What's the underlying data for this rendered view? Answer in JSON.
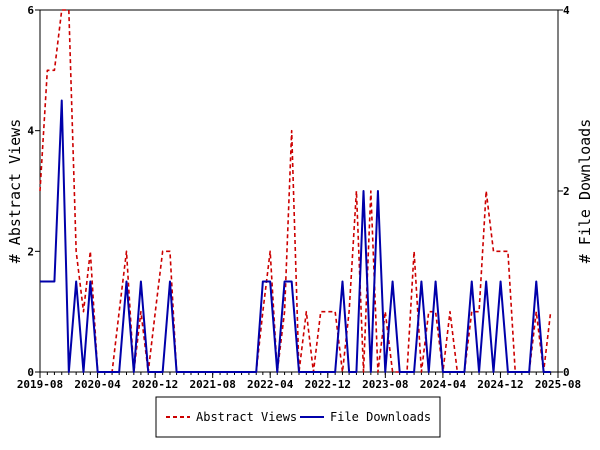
{
  "chart_data": {
    "type": "line",
    "x_tick_labels": [
      "2019-08",
      "2020-04",
      "2020-12",
      "2021-08",
      "2022-04",
      "2022-12",
      "2023-08",
      "2024-04",
      "2024-12",
      "2025-08"
    ],
    "x_range": [
      "2019-08-01",
      "2025-08-01"
    ],
    "y_left": {
      "label": "# Abstract Views",
      "range": [
        0,
        6
      ],
      "ticks": [
        "0",
        "2",
        "4",
        "6"
      ]
    },
    "y_right": {
      "label": "# File Downloads",
      "range": [
        0,
        4
      ],
      "ticks": [
        "0",
        "2",
        "4"
      ]
    },
    "grid": false,
    "legend_position": "bottom-center",
    "series": [
      {
        "name": "Abstract Views",
        "axis": "left",
        "color": "#cc0000",
        "style": "dashed",
        "points": [
          [
            "2019-08-01",
            3
          ],
          [
            "2019-09-01",
            5
          ],
          [
            "2019-10-01",
            5
          ],
          [
            "2019-11-01",
            6
          ],
          [
            "2019-12-01",
            6
          ],
          [
            "2020-01-01",
            2
          ],
          [
            "2020-02-01",
            1
          ],
          [
            "2020-03-01",
            2
          ],
          [
            "2020-04-01",
            0
          ],
          [
            "2020-05-01",
            0
          ],
          [
            "2020-06-01",
            0
          ],
          [
            "2020-07-01",
            1
          ],
          [
            "2020-08-01",
            2
          ],
          [
            "2020-09-01",
            0
          ],
          [
            "2020-10-01",
            1
          ],
          [
            "2020-11-01",
            0
          ],
          [
            "2020-12-01",
            1
          ],
          [
            "2021-01-01",
            2
          ],
          [
            "2021-02-01",
            2
          ],
          [
            "2021-03-01",
            0
          ],
          [
            "2021-04-01",
            0
          ],
          [
            "2021-05-01",
            0
          ],
          [
            "2021-06-01",
            0
          ],
          [
            "2021-07-01",
            0
          ],
          [
            "2021-08-01",
            0
          ],
          [
            "2021-09-01",
            0
          ],
          [
            "2021-10-01",
            0
          ],
          [
            "2021-11-01",
            0
          ],
          [
            "2021-12-01",
            0
          ],
          [
            "2022-01-01",
            0
          ],
          [
            "2022-02-01",
            0
          ],
          [
            "2022-03-01",
            1
          ],
          [
            "2022-04-01",
            2
          ],
          [
            "2022-05-01",
            0
          ],
          [
            "2022-06-01",
            1
          ],
          [
            "2022-07-01",
            4
          ],
          [
            "2022-08-01",
            0
          ],
          [
            "2022-09-01",
            1
          ],
          [
            "2022-10-01",
            0
          ],
          [
            "2022-11-01",
            1
          ],
          [
            "2022-12-01",
            1
          ],
          [
            "2023-01-01",
            1
          ],
          [
            "2023-02-01",
            0
          ],
          [
            "2023-03-01",
            1
          ],
          [
            "2023-04-01",
            3
          ],
          [
            "2023-05-01",
            0
          ],
          [
            "2023-06-01",
            3
          ],
          [
            "2023-07-01",
            0
          ],
          [
            "2023-08-01",
            1
          ],
          [
            "2023-09-01",
            0
          ],
          [
            "2023-10-01",
            0
          ],
          [
            "2023-11-01",
            0
          ],
          [
            "2023-12-01",
            2
          ],
          [
            "2024-01-01",
            0
          ],
          [
            "2024-02-01",
            1
          ],
          [
            "2024-03-01",
            1
          ],
          [
            "2024-04-01",
            0
          ],
          [
            "2024-05-01",
            1
          ],
          [
            "2024-06-01",
            0
          ],
          [
            "2024-07-01",
            0
          ],
          [
            "2024-08-01",
            1
          ],
          [
            "2024-09-01",
            1
          ],
          [
            "2024-10-01",
            3
          ],
          [
            "2024-11-01",
            2
          ],
          [
            "2024-12-01",
            2
          ],
          [
            "2025-01-01",
            2
          ],
          [
            "2025-02-01",
            0
          ],
          [
            "2025-03-01",
            0
          ],
          [
            "2025-04-01",
            0
          ],
          [
            "2025-05-01",
            1
          ],
          [
            "2025-06-01",
            0
          ],
          [
            "2025-07-01",
            1
          ]
        ]
      },
      {
        "name": "File Downloads",
        "axis": "right",
        "color": "#0000aa",
        "style": "solid",
        "points": [
          [
            "2019-08-01",
            1
          ],
          [
            "2019-09-01",
            1
          ],
          [
            "2019-10-01",
            1
          ],
          [
            "2019-11-01",
            3
          ],
          [
            "2019-12-01",
            0
          ],
          [
            "2020-01-01",
            1
          ],
          [
            "2020-02-01",
            0
          ],
          [
            "2020-03-01",
            1
          ],
          [
            "2020-04-01",
            0
          ],
          [
            "2020-05-01",
            0
          ],
          [
            "2020-06-01",
            0
          ],
          [
            "2020-07-01",
            0
          ],
          [
            "2020-08-01",
            1
          ],
          [
            "2020-09-01",
            0
          ],
          [
            "2020-10-01",
            1
          ],
          [
            "2020-11-01",
            0
          ],
          [
            "2020-12-01",
            0
          ],
          [
            "2021-01-01",
            0
          ],
          [
            "2021-02-01",
            1
          ],
          [
            "2021-03-01",
            0
          ],
          [
            "2021-04-01",
            0
          ],
          [
            "2021-05-01",
            0
          ],
          [
            "2021-06-01",
            0
          ],
          [
            "2021-07-01",
            0
          ],
          [
            "2021-08-01",
            0
          ],
          [
            "2021-09-01",
            0
          ],
          [
            "2021-10-01",
            0
          ],
          [
            "2021-11-01",
            0
          ],
          [
            "2021-12-01",
            0
          ],
          [
            "2022-01-01",
            0
          ],
          [
            "2022-02-01",
            0
          ],
          [
            "2022-03-01",
            1
          ],
          [
            "2022-04-01",
            1
          ],
          [
            "2022-05-01",
            0
          ],
          [
            "2022-06-01",
            1
          ],
          [
            "2022-07-01",
            1
          ],
          [
            "2022-08-01",
            0
          ],
          [
            "2022-09-01",
            0
          ],
          [
            "2022-10-01",
            0
          ],
          [
            "2022-11-01",
            0
          ],
          [
            "2022-12-01",
            0
          ],
          [
            "2023-01-01",
            0
          ],
          [
            "2023-02-01",
            1
          ],
          [
            "2023-03-01",
            0
          ],
          [
            "2023-04-01",
            0
          ],
          [
            "2023-05-01",
            2
          ],
          [
            "2023-06-01",
            0
          ],
          [
            "2023-07-01",
            2
          ],
          [
            "2023-08-01",
            0
          ],
          [
            "2023-09-01",
            1
          ],
          [
            "2023-10-01",
            0
          ],
          [
            "2023-11-01",
            0
          ],
          [
            "2023-12-01",
            0
          ],
          [
            "2024-01-01",
            1
          ],
          [
            "2024-02-01",
            0
          ],
          [
            "2024-03-01",
            1
          ],
          [
            "2024-04-01",
            0
          ],
          [
            "2024-05-01",
            0
          ],
          [
            "2024-06-01",
            0
          ],
          [
            "2024-07-01",
            0
          ],
          [
            "2024-08-01",
            1
          ],
          [
            "2024-09-01",
            0
          ],
          [
            "2024-10-01",
            1
          ],
          [
            "2024-11-01",
            0
          ],
          [
            "2024-12-01",
            1
          ],
          [
            "2025-01-01",
            0
          ],
          [
            "2025-02-01",
            0
          ],
          [
            "2025-03-01",
            0
          ],
          [
            "2025-04-01",
            0
          ],
          [
            "2025-05-01",
            1
          ],
          [
            "2025-06-01",
            0
          ],
          [
            "2025-07-01",
            0
          ]
        ]
      }
    ]
  }
}
